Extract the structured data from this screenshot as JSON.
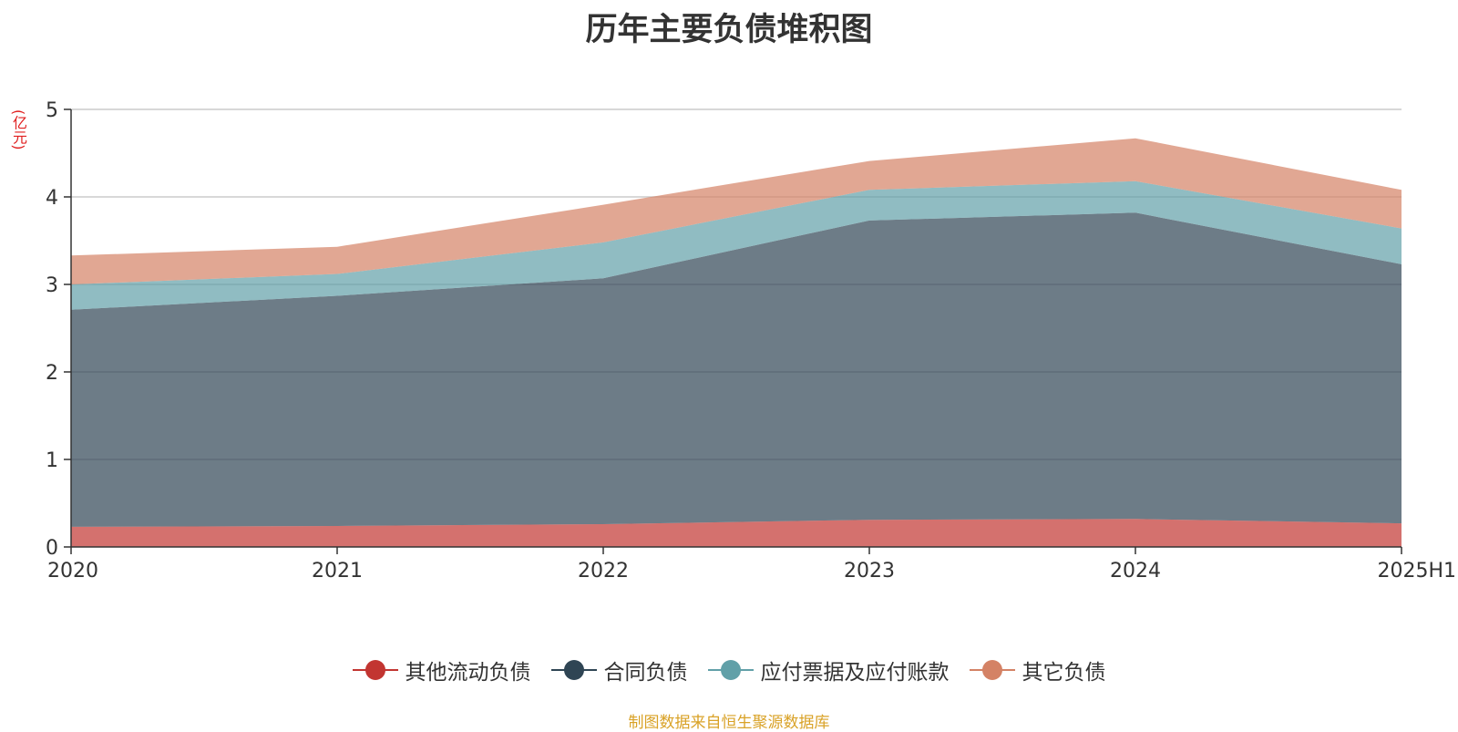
{
  "title": "历年主要负债堆积图",
  "unit_label": "(亿元)",
  "source": "制图数据来自恒生聚源数据库",
  "chart_data": {
    "type": "area",
    "stacked": true,
    "title": "历年主要负债堆积图",
    "ylabel": "(亿元)",
    "categories": [
      "2020",
      "2021",
      "2022",
      "2023",
      "2024",
      "2025H1"
    ],
    "y_ticks": [
      "0",
      "1",
      "2",
      "3",
      "4",
      "5"
    ],
    "ylim": [
      0,
      5
    ],
    "grid": true,
    "legend_position": "bottom",
    "series": [
      {
        "name": "其他流动负债",
        "color": "#c23531",
        "values": [
          0.23,
          0.24,
          0.26,
          0.31,
          0.32,
          0.27
        ]
      },
      {
        "name": "合同负债",
        "color": "#2f4554",
        "values": [
          2.48,
          2.63,
          2.81,
          3.42,
          3.5,
          2.96
        ]
      },
      {
        "name": "应付票据及应付账款",
        "color": "#61a0a8",
        "values": [
          0.29,
          0.25,
          0.41,
          0.35,
          0.36,
          0.41
        ]
      },
      {
        "name": "其它负债",
        "color": "#d48265",
        "values": [
          0.33,
          0.31,
          0.43,
          0.33,
          0.49,
          0.44
        ]
      }
    ]
  }
}
